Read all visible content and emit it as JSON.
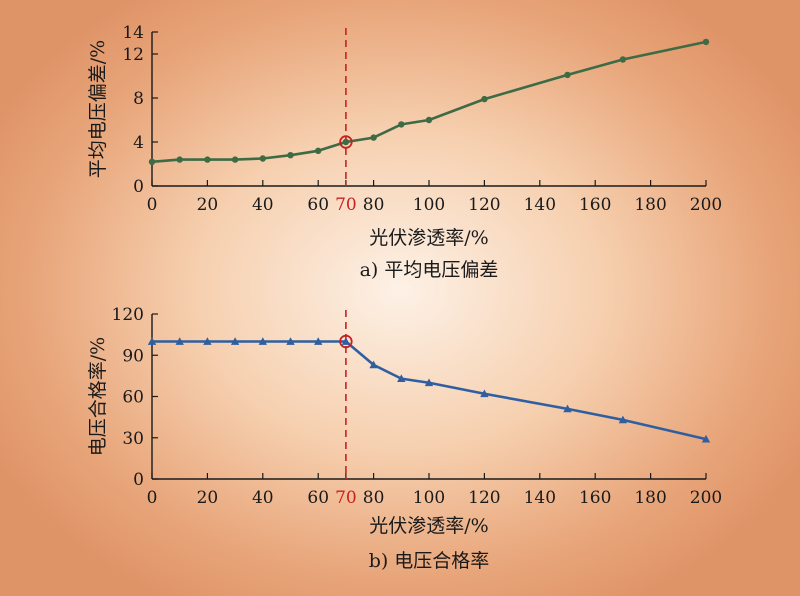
{
  "chart_data": [
    {
      "type": "line",
      "caption": "a) 平均电压偏差",
      "xlabel": "光伏渗透率/%",
      "ylabel": "平均电压偏差/%",
      "xlim": [
        0,
        200
      ],
      "ylim": [
        0,
        14
      ],
      "xticks": [
        "0",
        "20",
        "40",
        "60",
        "70",
        "80",
        "100",
        "120",
        "140",
        "160",
        "180",
        "200"
      ],
      "xtick_values": [
        0,
        20,
        40,
        60,
        70,
        80,
        100,
        120,
        140,
        160,
        180,
        200
      ],
      "yticks": [
        "0",
        "4",
        "8",
        "12",
        "14"
      ],
      "ytick_values": [
        0,
        4,
        8,
        12,
        14
      ],
      "highlight_x": 70,
      "highlight_tick": "70",
      "highlight_point": [
        70,
        4.0
      ],
      "series": [
        {
          "marker": "circle",
          "color": "#3d6b45",
          "x": [
            0,
            10,
            20,
            30,
            40,
            50,
            60,
            70,
            80,
            90,
            100,
            120,
            150,
            170,
            200
          ],
          "y": [
            2.2,
            2.4,
            2.4,
            2.4,
            2.5,
            2.8,
            3.2,
            4.0,
            4.4,
            5.6,
            6.0,
            7.9,
            10.1,
            11.5,
            13.1
          ]
        }
      ]
    },
    {
      "type": "line",
      "caption": "b) 电压合格率",
      "xlabel": "光伏渗透率/%",
      "ylabel": "电压合格率/%",
      "xlim": [
        0,
        200
      ],
      "ylim": [
        0,
        120
      ],
      "xticks": [
        "0",
        "20",
        "40",
        "60",
        "70",
        "80",
        "100",
        "120",
        "140",
        "160",
        "180",
        "200"
      ],
      "xtick_values": [
        0,
        20,
        40,
        60,
        70,
        80,
        100,
        120,
        140,
        160,
        180,
        200
      ],
      "yticks": [
        "0",
        "30",
        "60",
        "90",
        "120"
      ],
      "ytick_values": [
        0,
        30,
        60,
        90,
        120
      ],
      "highlight_x": 70,
      "highlight_tick": "70",
      "highlight_point": [
        70,
        100
      ],
      "series": [
        {
          "marker": "triangle",
          "color": "#2f5fa0",
          "x": [
            0,
            10,
            20,
            30,
            40,
            50,
            60,
            70,
            80,
            90,
            100,
            120,
            150,
            170,
            200
          ],
          "y": [
            100,
            100,
            100,
            100,
            100,
            100,
            100,
            100,
            83,
            73,
            70,
            62,
            51,
            43,
            29
          ]
        }
      ]
    }
  ],
  "colors": {
    "axis": "#1a1a1a",
    "highlight": "#c72222",
    "highlight_tick": "#c72222"
  }
}
